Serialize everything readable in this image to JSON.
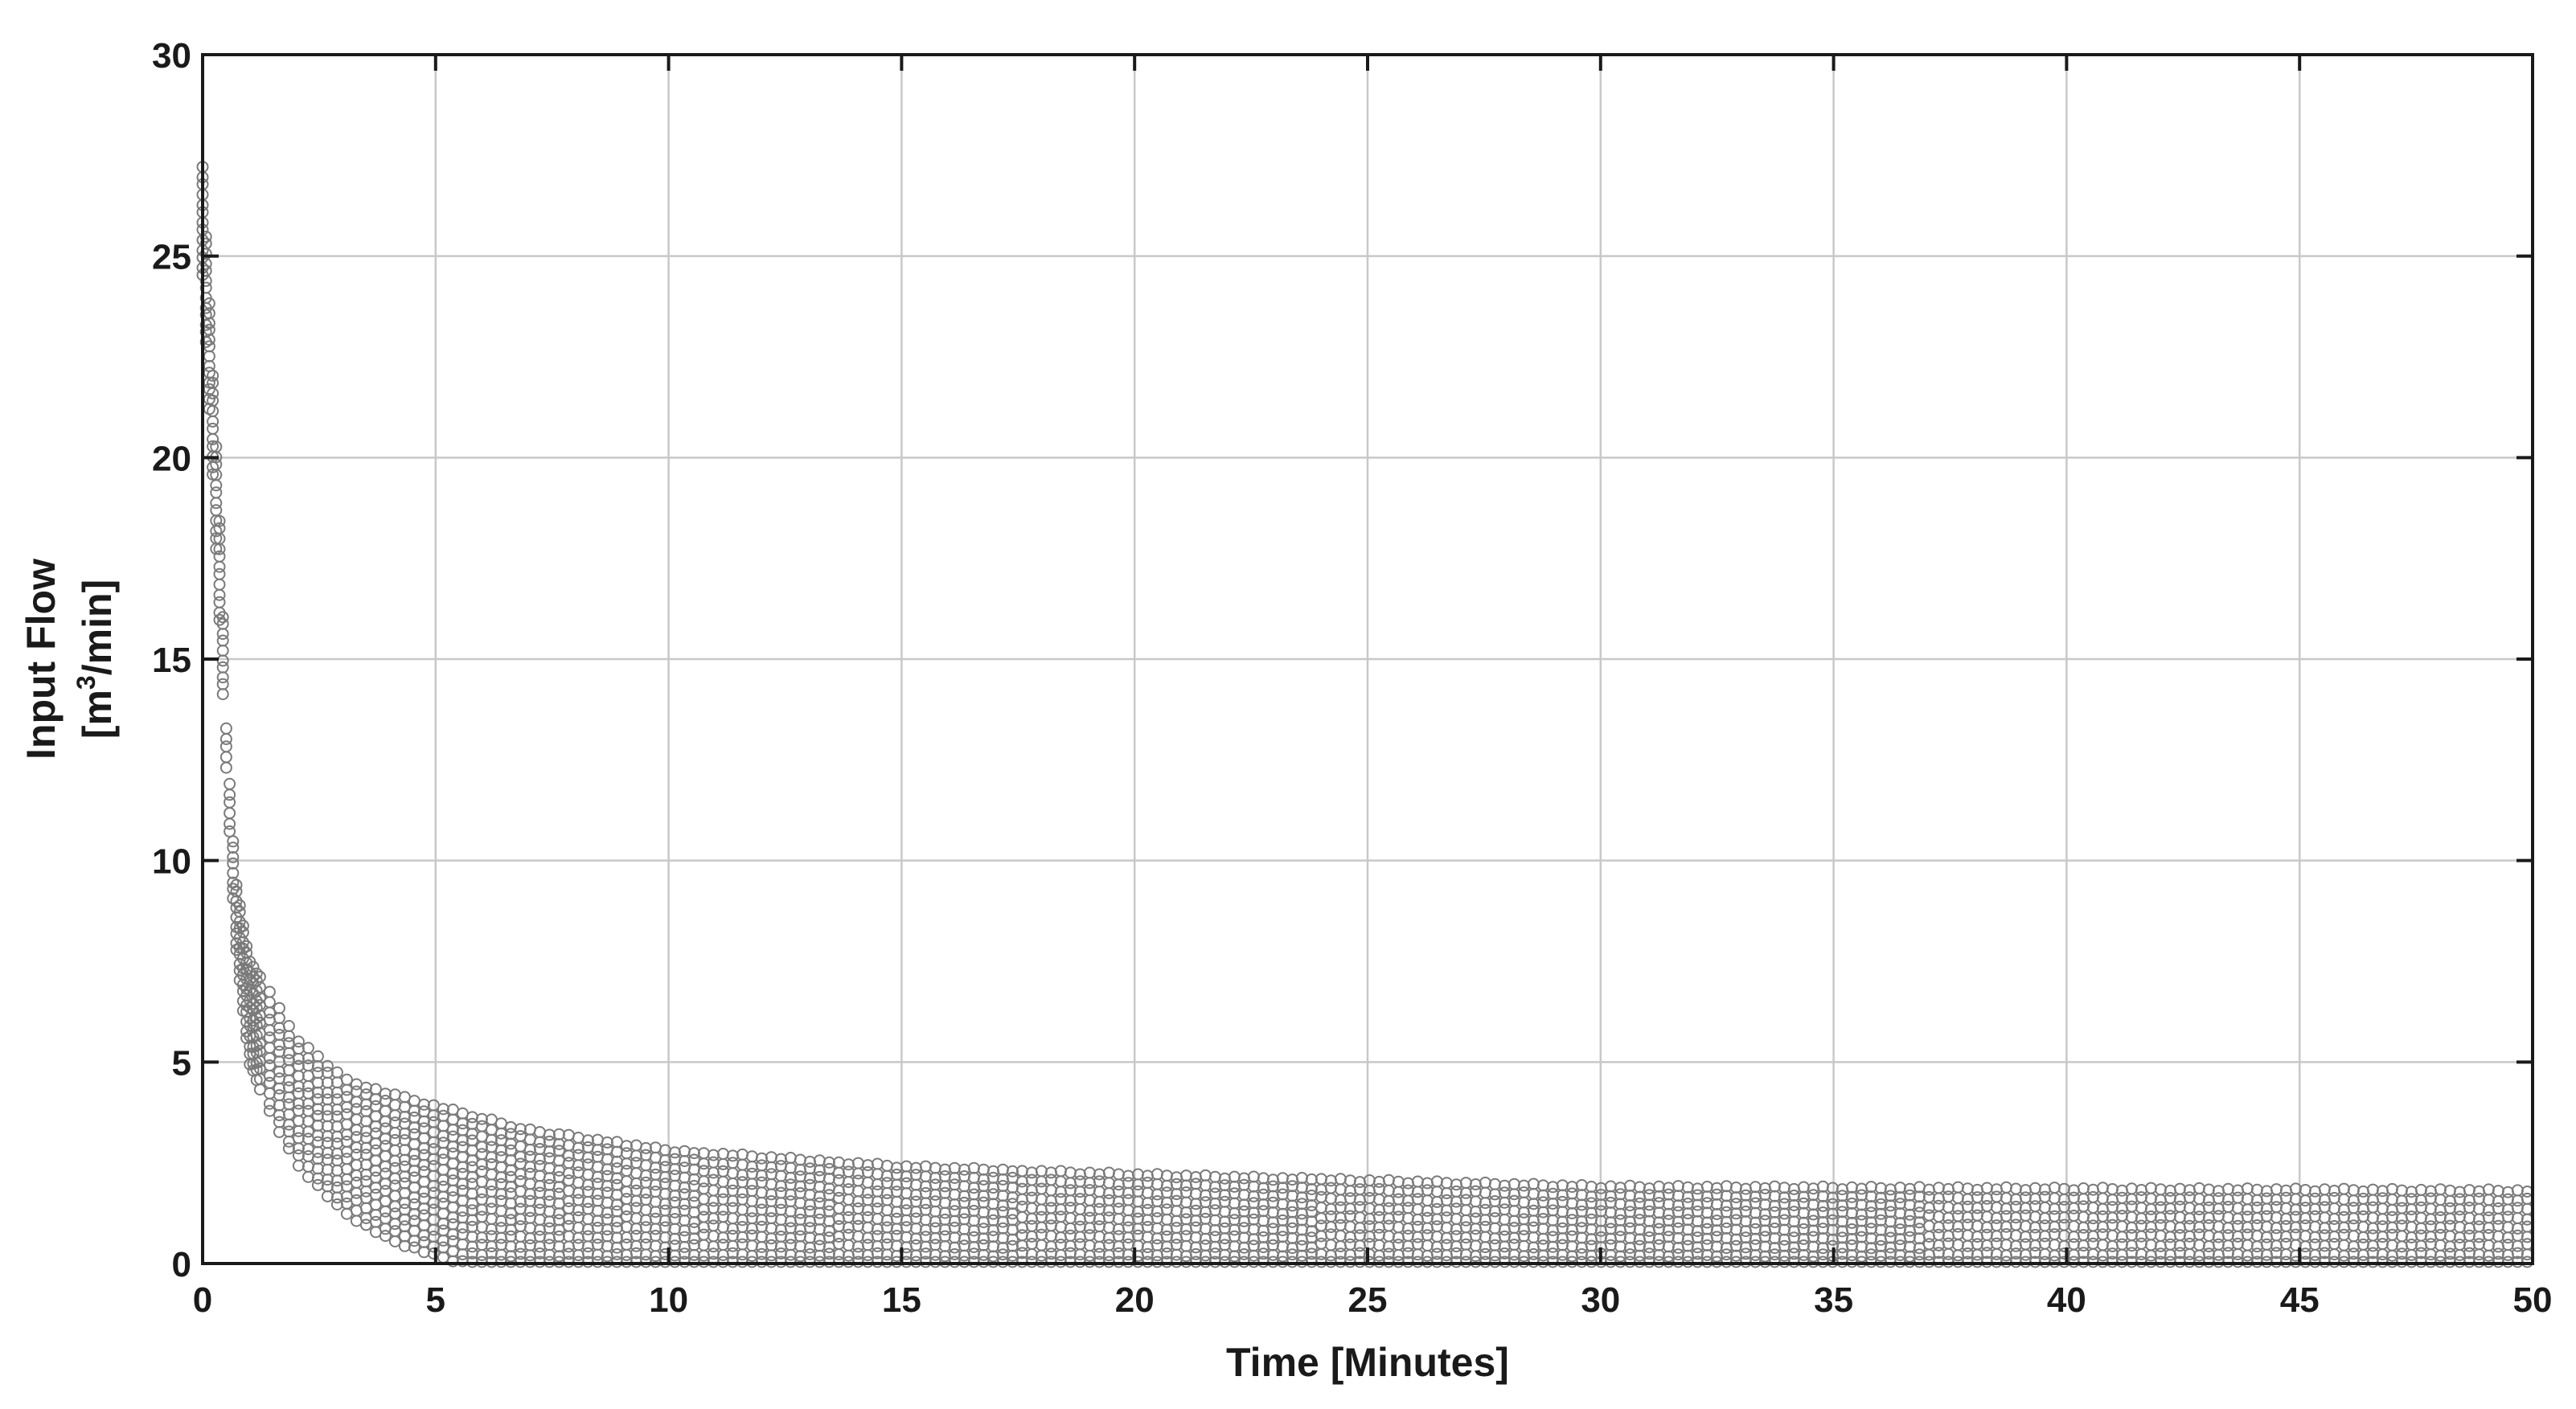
{
  "chart_data": {
    "type": "scatter",
    "title": "",
    "xlabel": "Time [Minutes]",
    "ylabel_line1": "Input Flow",
    "ylabel_line2_prefix": "[m",
    "ylabel_line2_sup": "3",
    "ylabel_line2_suffix": "/min]",
    "xlim": [
      0,
      50
    ],
    "ylim": [
      0,
      30
    ],
    "xticks": [
      0,
      5,
      10,
      15,
      20,
      25,
      30,
      35,
      40,
      45,
      50
    ],
    "yticks": [
      0,
      5,
      10,
      15,
      20,
      25,
      30
    ],
    "grid": true,
    "marker": "open-circle",
    "marker_color": "#7a7a7a",
    "series": [
      {
        "envelope_upper": {
          "x": [
            0,
            0.2,
            0.4,
            0.5,
            0.7,
            1.0,
            1.5,
            2,
            3,
            4,
            5,
            7,
            10,
            15,
            20,
            25,
            30,
            40,
            50
          ],
          "y": [
            27.2,
            22.5,
            17.5,
            13.4,
            9.6,
            7.5,
            6.6,
            5.6,
            4.6,
            4.2,
            3.9,
            3.3,
            2.8,
            2.4,
            2.2,
            2.05,
            1.9,
            1.85,
            1.8
          ]
        },
        "envelope_lower": {
          "x": [
            0,
            0.2,
            0.4,
            0.5,
            0.7,
            1.0,
            1.5,
            2,
            3,
            4,
            5,
            5.5,
            6,
            10,
            20,
            30,
            40,
            50
          ],
          "y": [
            24.5,
            20.0,
            15.0,
            12.5,
            8.0,
            5.0,
            3.6,
            2.5,
            1.3,
            0.6,
            0.2,
            0.05,
            0,
            0,
            0,
            0,
            0,
            0
          ]
        }
      }
    ]
  }
}
